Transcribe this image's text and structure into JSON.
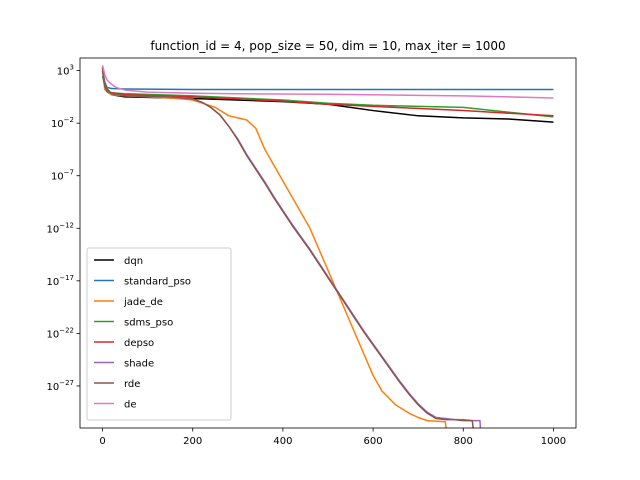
{
  "chart_data": {
    "type": "line",
    "title": "function_id = 4, pop_size = 50, dim = 10, max_iter = 1000",
    "xlabel": "",
    "ylabel": "",
    "yscale": "log",
    "xlim": [
      -50,
      1050
    ],
    "ylog_range": [
      -31,
      4.2
    ],
    "x_ticks": [
      0,
      200,
      400,
      600,
      800,
      1000
    ],
    "x_tick_labels": [
      "0",
      "200",
      "400",
      "600",
      "800",
      "1000"
    ],
    "y_ticks": [
      3,
      -2,
      -7,
      -12,
      -17,
      -22,
      -27
    ],
    "y_tick_labels": [
      {
        "base": "10",
        "exp": "3"
      },
      {
        "base": "10",
        "exp": "−2"
      },
      {
        "base": "10",
        "exp": "−7"
      },
      {
        "base": "10",
        "exp": "−12"
      },
      {
        "base": "10",
        "exp": "−17"
      },
      {
        "base": "10",
        "exp": "−22"
      },
      {
        "base": "10",
        "exp": "−27"
      }
    ],
    "grid": false,
    "legend_position": "lower-left",
    "series": [
      {
        "name": "dqn",
        "color": "#000000",
        "points": [
          [
            0,
            3.3
          ],
          [
            5,
            1.6
          ],
          [
            10,
            1.0
          ],
          [
            20,
            0.7
          ],
          [
            50,
            0.5
          ],
          [
            200,
            0.35
          ],
          [
            400,
            0.05
          ],
          [
            500,
            -0.2
          ],
          [
            600,
            -0.8
          ],
          [
            700,
            -1.3
          ],
          [
            800,
            -1.5
          ],
          [
            900,
            -1.6
          ],
          [
            1000,
            -1.9
          ]
        ]
      },
      {
        "name": "standard_pso",
        "color": "#1f77b4",
        "points": [
          [
            0,
            2.9
          ],
          [
            5,
            1.9
          ],
          [
            10,
            1.4
          ],
          [
            20,
            1.3
          ],
          [
            50,
            1.25
          ],
          [
            200,
            1.2
          ],
          [
            400,
            1.2
          ],
          [
            600,
            1.2
          ],
          [
            800,
            1.2
          ],
          [
            1000,
            1.2
          ]
        ]
      },
      {
        "name": "jade_de",
        "color": "#ff7f0e",
        "points": [
          [
            0,
            3.2
          ],
          [
            5,
            1.2
          ],
          [
            20,
            0.7
          ],
          [
            50,
            0.6
          ],
          [
            150,
            0.4
          ],
          [
            200,
            0.2
          ],
          [
            250,
            -0.5
          ],
          [
            280,
            -1.3
          ],
          [
            300,
            -1.5
          ],
          [
            320,
            -1.7
          ],
          [
            340,
            -2.5
          ],
          [
            360,
            -4.5
          ],
          [
            380,
            -6.0
          ],
          [
            400,
            -7.5
          ],
          [
            420,
            -9.0
          ],
          [
            440,
            -10.5
          ],
          [
            460,
            -12.0
          ],
          [
            480,
            -14.0
          ],
          [
            500,
            -16.0
          ],
          [
            520,
            -18.0
          ],
          [
            540,
            -20.0
          ],
          [
            560,
            -22.0
          ],
          [
            580,
            -24.0
          ],
          [
            600,
            -26.0
          ],
          [
            620,
            -27.5
          ],
          [
            650,
            -28.8
          ],
          [
            680,
            -29.6
          ],
          [
            700,
            -30.0
          ],
          [
            720,
            -30.3
          ],
          [
            760,
            -30.4
          ],
          [
            762,
            -31
          ]
        ]
      },
      {
        "name": "sdms_pso",
        "color": "#2ca02c",
        "points": [
          [
            0,
            2.5
          ],
          [
            5,
            1.5
          ],
          [
            10,
            1.0
          ],
          [
            20,
            0.9
          ],
          [
            50,
            0.8
          ],
          [
            200,
            0.6
          ],
          [
            400,
            0.2
          ],
          [
            500,
            -0.1
          ],
          [
            600,
            -0.3
          ],
          [
            800,
            -0.5
          ],
          [
            1000,
            -1.4
          ]
        ]
      },
      {
        "name": "depso",
        "color": "#d62728",
        "points": [
          [
            0,
            3.0
          ],
          [
            5,
            1.6
          ],
          [
            10,
            1.1
          ],
          [
            20,
            0.9
          ],
          [
            50,
            0.7
          ],
          [
            200,
            0.5
          ],
          [
            400,
            0.1
          ],
          [
            500,
            -0.2
          ],
          [
            600,
            -0.4
          ],
          [
            800,
            -0.8
          ],
          [
            1000,
            -1.3
          ]
        ]
      },
      {
        "name": "shade",
        "color": "#9467bd",
        "points": [
          [
            0,
            3.3
          ],
          [
            5,
            1.5
          ],
          [
            20,
            0.8
          ],
          [
            50,
            0.6
          ],
          [
            150,
            0.5
          ],
          [
            200,
            0.3
          ],
          [
            220,
            0.0
          ],
          [
            240,
            -0.5
          ],
          [
            260,
            -1.2
          ],
          [
            280,
            -2.3
          ],
          [
            300,
            -3.5
          ],
          [
            320,
            -5.0
          ],
          [
            340,
            -6.3
          ],
          [
            360,
            -7.6
          ],
          [
            380,
            -9.0
          ],
          [
            400,
            -10.3
          ],
          [
            420,
            -11.6
          ],
          [
            440,
            -12.8
          ],
          [
            460,
            -14.0
          ],
          [
            480,
            -15.3
          ],
          [
            500,
            -16.6
          ],
          [
            520,
            -17.9
          ],
          [
            540,
            -19.2
          ],
          [
            560,
            -20.5
          ],
          [
            580,
            -21.8
          ],
          [
            600,
            -23.0
          ],
          [
            620,
            -24.2
          ],
          [
            640,
            -25.4
          ],
          [
            660,
            -26.6
          ],
          [
            680,
            -27.7
          ],
          [
            700,
            -28.7
          ],
          [
            720,
            -29.5
          ],
          [
            740,
            -30.0
          ],
          [
            760,
            -30.1
          ],
          [
            780,
            -30.2
          ],
          [
            800,
            -30.2
          ],
          [
            820,
            -30.3
          ],
          [
            837,
            -30.3
          ],
          [
            838,
            -31
          ]
        ]
      },
      {
        "name": "rde",
        "color": "#8c564b",
        "points": [
          [
            0,
            3.3
          ],
          [
            5,
            1.5
          ],
          [
            20,
            0.8
          ],
          [
            50,
            0.6
          ],
          [
            150,
            0.5
          ],
          [
            200,
            0.3
          ],
          [
            220,
            0.0
          ],
          [
            240,
            -0.5
          ],
          [
            260,
            -1.2
          ],
          [
            280,
            -2.3
          ],
          [
            300,
            -3.6
          ],
          [
            320,
            -5.1
          ],
          [
            340,
            -6.4
          ],
          [
            360,
            -7.7
          ],
          [
            380,
            -9.1
          ],
          [
            400,
            -10.4
          ],
          [
            420,
            -11.7
          ],
          [
            440,
            -12.9
          ],
          [
            460,
            -14.1
          ],
          [
            480,
            -15.4
          ],
          [
            500,
            -16.7
          ],
          [
            520,
            -18.0
          ],
          [
            540,
            -19.3
          ],
          [
            560,
            -20.6
          ],
          [
            580,
            -21.9
          ],
          [
            600,
            -23.1
          ],
          [
            620,
            -24.3
          ],
          [
            640,
            -25.5
          ],
          [
            660,
            -26.7
          ],
          [
            680,
            -27.8
          ],
          [
            700,
            -28.8
          ],
          [
            720,
            -29.6
          ],
          [
            740,
            -30.1
          ],
          [
            760,
            -30.2
          ],
          [
            780,
            -30.2
          ],
          [
            800,
            -30.3
          ],
          [
            820,
            -30.3
          ],
          [
            822,
            -31
          ]
        ]
      },
      {
        "name": "de",
        "color": "#e377c2",
        "points": [
          [
            0,
            3.5
          ],
          [
            5,
            2.6
          ],
          [
            10,
            2.1
          ],
          [
            20,
            1.7
          ],
          [
            30,
            1.4
          ],
          [
            50,
            1.15
          ],
          [
            100,
            0.95
          ],
          [
            200,
            0.85
          ],
          [
            300,
            0.8
          ],
          [
            500,
            0.75
          ],
          [
            700,
            0.65
          ],
          [
            800,
            0.6
          ],
          [
            1000,
            0.4
          ]
        ]
      }
    ]
  }
}
